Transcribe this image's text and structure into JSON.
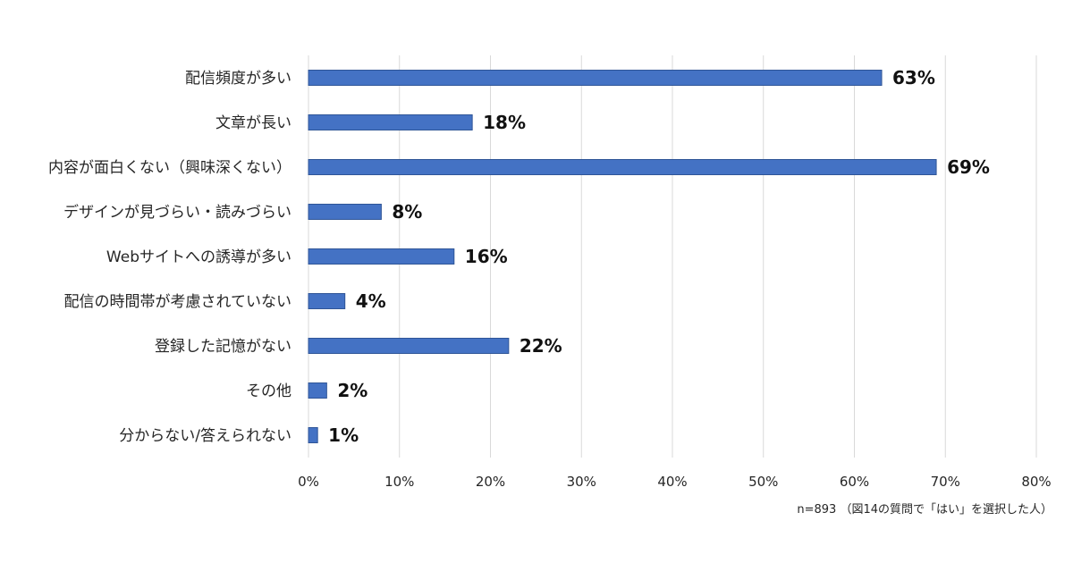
{
  "chart_data": {
    "type": "bar",
    "orientation": "horizontal",
    "categories": [
      "配信頻度が多い",
      "文章が長い",
      "内容が面白くない（興味深くない）",
      "デザインが見づらい・読みづらい",
      "Webサイトへの誘導が多い",
      "配信の時間帯が考慮されていない",
      "登録した記憶がない",
      "その他",
      "分からない/答えられない"
    ],
    "values": [
      63,
      18,
      69,
      8,
      16,
      4,
      22,
      2,
      1
    ],
    "data_labels": [
      "63%",
      "18%",
      "69%",
      "8%",
      "16%",
      "4%",
      "22%",
      "2%",
      "1%"
    ],
    "xlim": [
      0,
      80
    ],
    "x_ticks": [
      0,
      10,
      20,
      30,
      40,
      50,
      60,
      70,
      80
    ],
    "x_tick_labels": [
      "0%",
      "10%",
      "20%",
      "30%",
      "40%",
      "50%",
      "60%",
      "70%",
      "80%"
    ],
    "grid": true,
    "bar_color": "#4472C4",
    "bar_border_color": "#2F5597",
    "grid_color": "#D9D9D9",
    "note": "n=893 （図14の質問で「はい」を選択した人）"
  }
}
